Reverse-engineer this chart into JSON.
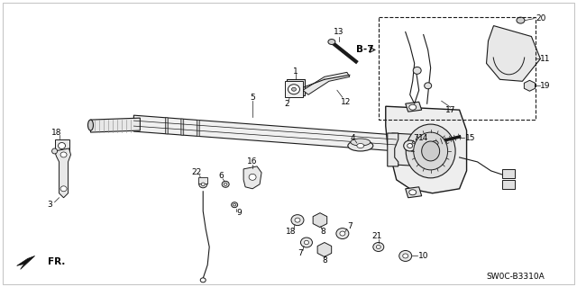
{
  "background_color": "#ffffff",
  "line_color": "#1a1a1a",
  "text_color": "#000000",
  "diagram_code": "SW0C-B3310A",
  "figsize": [
    6.4,
    3.19
  ],
  "dpi": 100,
  "label_fontsize": 6.5,
  "title_fontsize": 7
}
